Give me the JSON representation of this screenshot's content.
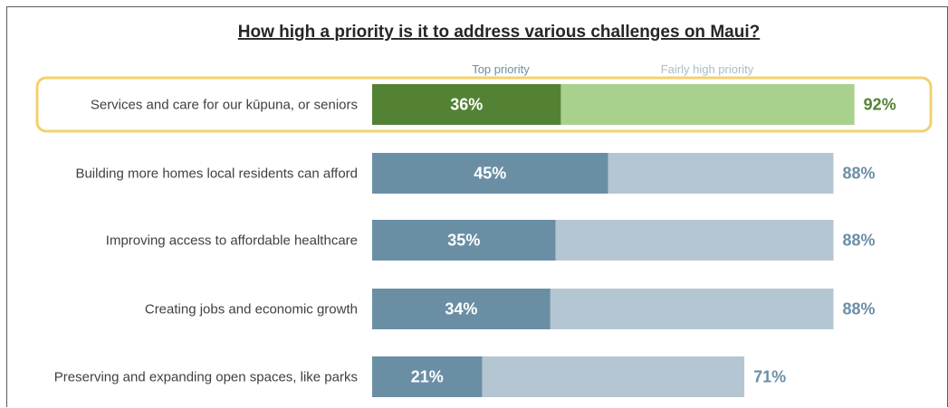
{
  "chart_data": {
    "type": "bar",
    "orientation": "horizontal",
    "stacked": true,
    "title": "How high a priority is it to address various challenges on Maui?",
    "xlim": [
      0,
      100
    ],
    "grid": false,
    "legend_position": "top",
    "categories": [
      "Services and care for our kūpuna, or seniors",
      "Building more homes local residents can afford",
      "Improving access to affordable healthcare",
      "Creating jobs and economic growth",
      "Preserving and expanding open spaces, like parks"
    ],
    "series": [
      {
        "name": "Top priority",
        "values": [
          36,
          45,
          35,
          34,
          21
        ]
      },
      {
        "name": "Fairly high priority",
        "values": [
          56,
          43,
          53,
          54,
          50
        ]
      }
    ],
    "totals": [
      92,
      88,
      88,
      88,
      71
    ],
    "top_labels": [
      "36%",
      "45%",
      "35%",
      "34%",
      "21%"
    ],
    "total_labels": [
      "92%",
      "88%",
      "88%",
      "88%",
      "71%"
    ],
    "highlighted_index": 0
  },
  "colors": {
    "highlight_top": "#548235",
    "highlight_fairly": "#A9D18E",
    "highlight_total_text": "#548235",
    "highlight_border": "#F5D06B",
    "top": "#6A8FA5",
    "fairly": "#B4C6D1",
    "total_text": "#6A8FA5",
    "legend_top": "#6A8FA5",
    "legend_fairly": "#A8BDCA"
  }
}
